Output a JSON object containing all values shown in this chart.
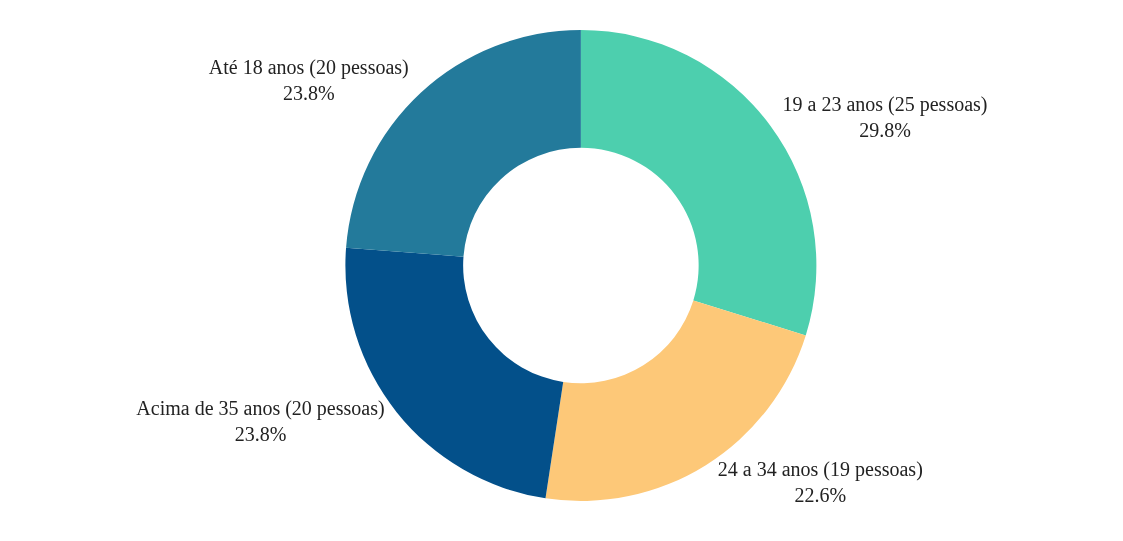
{
  "chart_data": {
    "type": "donut",
    "categories": [
      "19 a 23 anos (25 pessoas)",
      "24 a 34 anos (19 pessoas)",
      "Acima de 35 anos (20 pessoas)",
      "Até 18 anos (20 pessoas)"
    ],
    "values": [
      29.8,
      22.6,
      23.8,
      23.8
    ],
    "value_labels": [
      "29.8%",
      "22.6%",
      "23.8%",
      "23.8%"
    ],
    "colors": [
      "#4dcfae",
      "#fdc878",
      "#03508a",
      "#237a9b"
    ],
    "legend": false
  }
}
